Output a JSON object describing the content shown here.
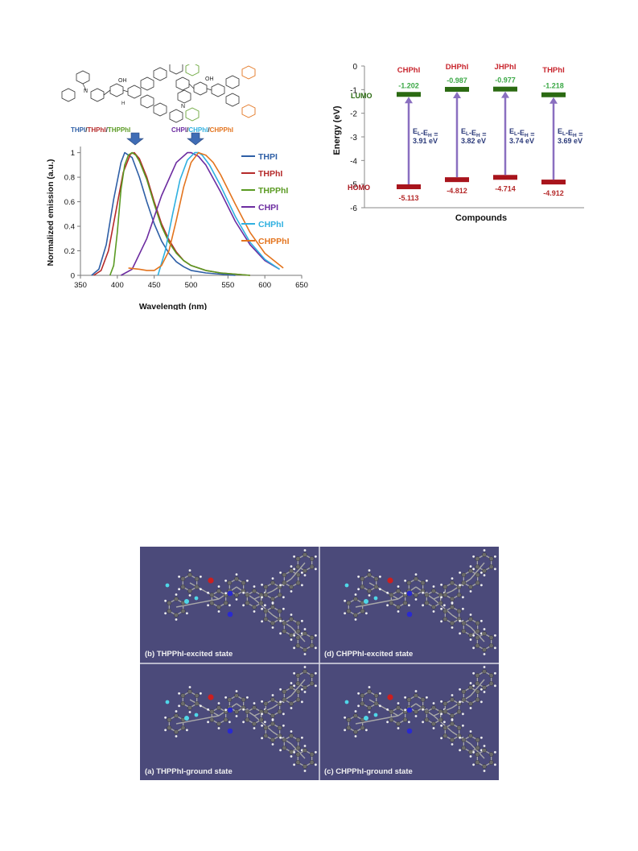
{
  "emission": {
    "structure_left_caption": [
      "THPI",
      "/",
      "THPhI",
      "/",
      "THPPhI"
    ],
    "structure_right_caption": [
      "CHPI",
      "/",
      "CHPhI",
      "/",
      "CHPPhI"
    ],
    "structure_labels": {
      "oh": "OH",
      "n": "N",
      "h_n": "H",
      "n2": "N"
    },
    "colors": {
      "THPI": "#2e5fa6",
      "THPhI": "#b52a2a",
      "THPPhI": "#5a9a22",
      "CHPI": "#6c2ca0",
      "CHPhI": "#2fb0e0",
      "CHPPhI": "#e3741e"
    }
  },
  "chart_data": [
    {
      "type": "line",
      "xlabel": "Wavelength (nm)",
      "ylabel": "Normalized emission (a.u.)",
      "xlim": [
        350,
        650
      ],
      "ylim": [
        0,
        1.05
      ],
      "xticks": [
        350,
        400,
        450,
        500,
        550,
        600,
        650
      ],
      "yticks": [
        0,
        0.2,
        0.4,
        0.6,
        0.8,
        1
      ],
      "ytick_labels": [
        "0",
        "0.2",
        "0.4",
        "0.6",
        "0.8",
        "1"
      ],
      "legend_position": "right",
      "series": [
        {
          "name": "THPI",
          "color": "#2e5fa6",
          "x": [
            365,
            375,
            385,
            395,
            405,
            410,
            420,
            430,
            440,
            450,
            460,
            470,
            480,
            490,
            500,
            520,
            540,
            560
          ],
          "y": [
            0.0,
            0.05,
            0.25,
            0.62,
            0.92,
            1.0,
            0.96,
            0.8,
            0.6,
            0.42,
            0.28,
            0.18,
            0.11,
            0.07,
            0.04,
            0.02,
            0.01,
            0.0
          ]
        },
        {
          "name": "THPhI",
          "color": "#b52a2a",
          "x": [
            368,
            378,
            388,
            398,
            408,
            418,
            423,
            430,
            440,
            450,
            460,
            470,
            480,
            490,
            500,
            520,
            540,
            560,
            580
          ],
          "y": [
            0.0,
            0.04,
            0.2,
            0.52,
            0.84,
            0.99,
            1.0,
            0.95,
            0.8,
            0.6,
            0.42,
            0.29,
            0.19,
            0.12,
            0.08,
            0.04,
            0.02,
            0.01,
            0.0
          ]
        },
        {
          "name": "THPPhI",
          "color": "#5a9a22",
          "x": [
            390,
            395,
            400,
            405,
            410,
            415,
            420,
            425,
            430,
            440,
            450,
            460,
            470,
            480,
            490,
            500,
            520,
            540,
            560,
            580
          ],
          "y": [
            0.0,
            0.08,
            0.35,
            0.7,
            0.9,
            0.98,
            1.0,
            0.98,
            0.93,
            0.78,
            0.58,
            0.4,
            0.27,
            0.18,
            0.12,
            0.08,
            0.04,
            0.02,
            0.01,
            0.0
          ]
        },
        {
          "name": "CHPI",
          "color": "#6c2ca0",
          "x": [
            405,
            420,
            440,
            460,
            480,
            495,
            500,
            510,
            520,
            540,
            560,
            580,
            600,
            620
          ],
          "y": [
            0.0,
            0.05,
            0.3,
            0.65,
            0.92,
            1.0,
            1.0,
            0.97,
            0.9,
            0.68,
            0.44,
            0.25,
            0.12,
            0.05
          ]
        },
        {
          "name": "CHPhI",
          "color": "#2fb0e0",
          "x": [
            455,
            465,
            475,
            485,
            495,
            505,
            510,
            515,
            525,
            540,
            560,
            580,
            600,
            620
          ],
          "y": [
            0.0,
            0.2,
            0.5,
            0.78,
            0.94,
            1.0,
            1.0,
            0.98,
            0.9,
            0.73,
            0.48,
            0.27,
            0.13,
            0.05
          ]
        },
        {
          "name": "CHPPhI",
          "color": "#e3741e",
          "x": [
            415,
            430,
            440,
            450,
            460,
            470,
            480,
            490,
            500,
            510,
            520,
            530,
            540,
            560,
            580,
            600,
            625
          ],
          "y": [
            0.06,
            0.05,
            0.04,
            0.04,
            0.08,
            0.2,
            0.45,
            0.72,
            0.92,
            1.0,
            0.98,
            0.92,
            0.82,
            0.58,
            0.35,
            0.18,
            0.06
          ]
        }
      ]
    },
    {
      "type": "bar",
      "xlabel": "Compounds",
      "ylabel": "Energy (eV)",
      "ylim": [
        -6,
        0
      ],
      "yticks": [
        0,
        -1,
        -2,
        -3,
        -4,
        -5,
        -6
      ],
      "lumo_label": "LUMO",
      "homo_label": "HOMO",
      "compounds": [
        "CHPhI",
        "DHPhI",
        "JHPhI",
        "THPhI"
      ],
      "lumo": [
        -1.202,
        -0.987,
        -0.977,
        -1.218
      ],
      "homo": [
        -5.113,
        -4.812,
        -4.714,
        -4.912
      ],
      "lumo_text": [
        "-1.202",
        "-0.987",
        "-0.977",
        "-1.218"
      ],
      "homo_text": [
        "-5.113",
        "-4.812",
        "-4.714",
        "-4.912"
      ],
      "gap_label": "E",
      "gap_label_sub": [
        "L",
        "H"
      ],
      "gap_label_sep": "-",
      "gap_label_eq": " =",
      "gap_text": [
        "3.91 eV",
        "3.82 eV",
        "3.74 eV",
        "3.69 eV"
      ],
      "colors": {
        "lumo": "#2b6a12",
        "homo": "#a8141c",
        "arrow": "#8a6fc0",
        "compound_label": "#c8262e",
        "lumo_value": "#3aa845",
        "homo_value": "#b52a2a",
        "gap_text": "#2b3a7a"
      }
    }
  ],
  "geometry": {
    "background": "#4b4a7a",
    "panels": [
      {
        "caption": "(b) THPPhI-excited state",
        "variant": "TH"
      },
      {
        "caption": "(d) CHPPhI-excited state",
        "variant": "CH"
      },
      {
        "caption": "(a) THPPhI-ground state",
        "variant": "TH"
      },
      {
        "caption": "(c) CHPPhI-ground state",
        "variant": "CH"
      }
    ]
  }
}
